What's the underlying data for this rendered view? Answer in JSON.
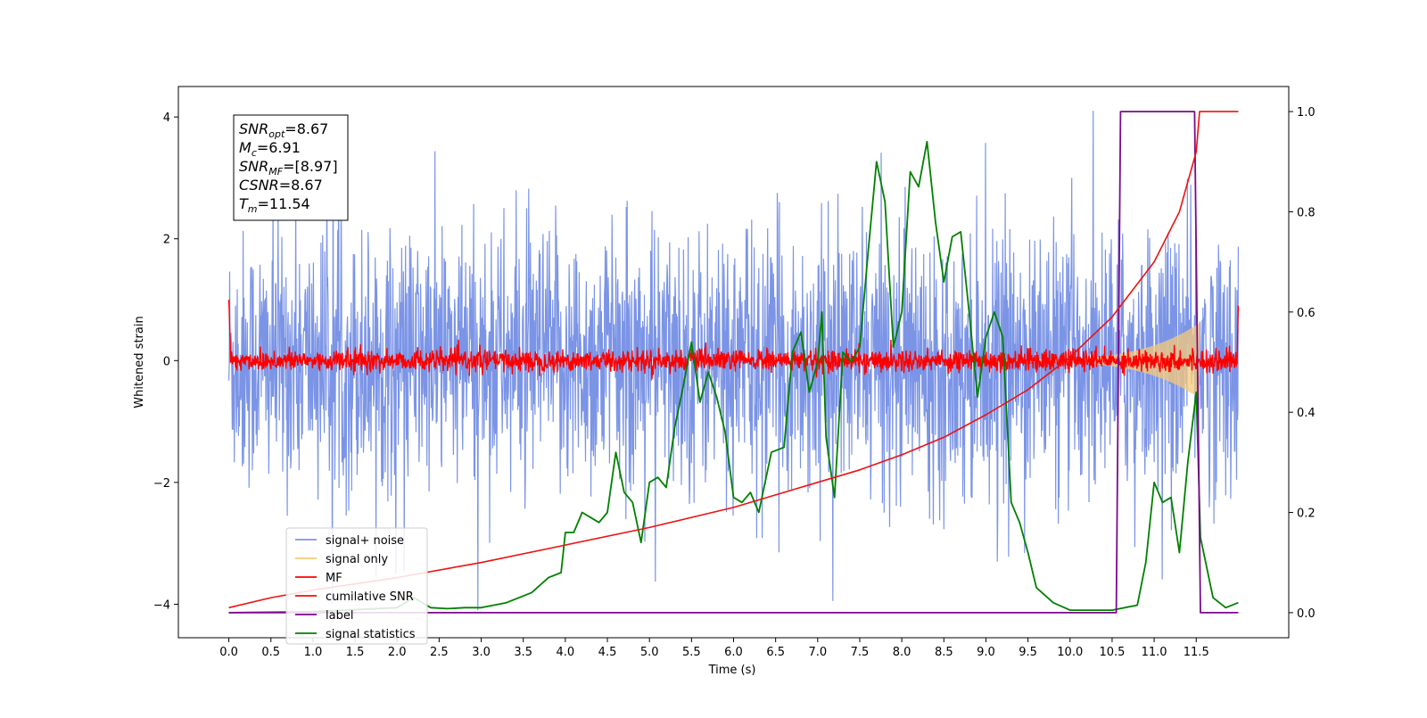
{
  "chart_data": {
    "type": "line",
    "xlabel": "Time (s)",
    "ylabel": "Whitened strain",
    "xlim": [
      -0.6,
      12.6
    ],
    "ylim": [
      -4.55,
      4.5
    ],
    "ylim_right": [
      -0.05,
      1.05
    ],
    "xticks": [
      "0.0",
      "0.5",
      "1.0",
      "1.5",
      "2.0",
      "2.5",
      "3.0",
      "3.5",
      "4.0",
      "4.5",
      "5.0",
      "5.5",
      "6.0",
      "6.5",
      "7.0",
      "7.5",
      "8.0",
      "8.5",
      "9.0",
      "9.5",
      "10.0",
      "10.5",
      "11.0",
      "11.5"
    ],
    "yticks_left": [
      "4",
      "2",
      "0",
      "−2",
      "−4"
    ],
    "yticks_right": [
      "1.0",
      "0.8",
      "0.6",
      "0.4",
      "0.2",
      "0.0"
    ],
    "legend_position": "lower left",
    "grid": false,
    "info_box": {
      "lines": [
        {
          "base": "SNR",
          "sub": "opt",
          "value": "=8.67"
        },
        {
          "base": "M",
          "sub": "c",
          "value": "=6.91"
        },
        {
          "base": "SNR",
          "sub": "MF",
          "value": "=[8.97]"
        },
        {
          "base": "CSNR",
          "sub": "",
          "value": "=8.67"
        },
        {
          "base": "T",
          "sub": "m",
          "value": "=11.54"
        }
      ]
    },
    "series": [
      {
        "name": "signal+ noise",
        "color": "#7b94e6",
        "axis": "left",
        "style": "noise band, amplitude about ±2.5, spikes to about ±4",
        "x_range": [
          0,
          12.0
        ]
      },
      {
        "name": "signal only",
        "color": "#f5c97a",
        "axis": "left",
        "style": "chirp growing in amplitude, ending near t=11.54",
        "x_range": [
          9.0,
          11.54
        ]
      },
      {
        "name": "MF",
        "color": "#ff0000",
        "axis": "left",
        "style": "noise band about ±0.2",
        "x_range": [
          0,
          12.0
        ]
      },
      {
        "name": "cumilative SNR",
        "color": "#ee1111",
        "axis": "right",
        "points": [
          [
            0,
            0.01
          ],
          [
            0.5,
            0.03
          ],
          [
            1.0,
            0.045
          ],
          [
            2.0,
            0.07
          ],
          [
            3.0,
            0.1
          ],
          [
            4.0,
            0.135
          ],
          [
            5.0,
            0.17
          ],
          [
            6.0,
            0.21
          ],
          [
            7.0,
            0.26
          ],
          [
            7.5,
            0.285
          ],
          [
            8.0,
            0.315
          ],
          [
            8.5,
            0.35
          ],
          [
            9.0,
            0.395
          ],
          [
            9.5,
            0.445
          ],
          [
            10.0,
            0.51
          ],
          [
            10.5,
            0.59
          ],
          [
            11.0,
            0.7
          ],
          [
            11.3,
            0.8
          ],
          [
            11.5,
            0.92
          ],
          [
            11.54,
            1.0
          ],
          [
            12.0,
            1.0
          ]
        ]
      },
      {
        "name": "label",
        "color": "#7a0a8c",
        "axis": "right",
        "points": [
          [
            0,
            0
          ],
          [
            10.55,
            0
          ],
          [
            10.6,
            1.0
          ],
          [
            11.48,
            1.0
          ],
          [
            11.55,
            0
          ],
          [
            12.0,
            0
          ]
        ]
      },
      {
        "name": "signal statistics",
        "color": "#008000",
        "axis": "right",
        "points": [
          [
            0,
            0
          ],
          [
            1.0,
            0.002
          ],
          [
            2.0,
            0.01
          ],
          [
            2.2,
            0.03
          ],
          [
            2.4,
            0.01
          ],
          [
            2.6,
            0.008
          ],
          [
            2.8,
            0.01
          ],
          [
            3.0,
            0.01
          ],
          [
            3.3,
            0.02
          ],
          [
            3.6,
            0.04
          ],
          [
            3.8,
            0.07
          ],
          [
            3.95,
            0.08
          ],
          [
            4.0,
            0.16
          ],
          [
            4.1,
            0.16
          ],
          [
            4.2,
            0.2
          ],
          [
            4.3,
            0.19
          ],
          [
            4.4,
            0.18
          ],
          [
            4.5,
            0.2
          ],
          [
            4.6,
            0.32
          ],
          [
            4.7,
            0.24
          ],
          [
            4.8,
            0.22
          ],
          [
            4.9,
            0.14
          ],
          [
            5.0,
            0.26
          ],
          [
            5.1,
            0.27
          ],
          [
            5.2,
            0.25
          ],
          [
            5.3,
            0.37
          ],
          [
            5.4,
            0.45
          ],
          [
            5.5,
            0.54
          ],
          [
            5.6,
            0.42
          ],
          [
            5.7,
            0.48
          ],
          [
            5.8,
            0.43
          ],
          [
            5.9,
            0.36
          ],
          [
            6.0,
            0.23
          ],
          [
            6.1,
            0.22
          ],
          [
            6.2,
            0.24
          ],
          [
            6.3,
            0.2
          ],
          [
            6.45,
            0.32
          ],
          [
            6.6,
            0.33
          ],
          [
            6.7,
            0.52
          ],
          [
            6.8,
            0.56
          ],
          [
            6.9,
            0.44
          ],
          [
            7.0,
            0.5
          ],
          [
            7.05,
            0.6
          ],
          [
            7.1,
            0.35
          ],
          [
            7.2,
            0.23
          ],
          [
            7.3,
            0.52
          ],
          [
            7.4,
            0.5
          ],
          [
            7.5,
            0.53
          ],
          [
            7.6,
            0.72
          ],
          [
            7.7,
            0.9
          ],
          [
            7.8,
            0.82
          ],
          [
            7.9,
            0.53
          ],
          [
            8.0,
            0.6
          ],
          [
            8.1,
            0.88
          ],
          [
            8.2,
            0.85
          ],
          [
            8.3,
            0.94
          ],
          [
            8.4,
            0.78
          ],
          [
            8.5,
            0.66
          ],
          [
            8.6,
            0.75
          ],
          [
            8.7,
            0.76
          ],
          [
            8.8,
            0.6
          ],
          [
            8.9,
            0.43
          ],
          [
            9.0,
            0.55
          ],
          [
            9.1,
            0.6
          ],
          [
            9.2,
            0.55
          ],
          [
            9.3,
            0.22
          ],
          [
            9.4,
            0.18
          ],
          [
            9.5,
            0.12
          ],
          [
            9.6,
            0.05
          ],
          [
            9.8,
            0.02
          ],
          [
            10.0,
            0.005
          ],
          [
            10.5,
            0.005
          ],
          [
            10.8,
            0.015
          ],
          [
            10.9,
            0.1
          ],
          [
            11.0,
            0.26
          ],
          [
            11.1,
            0.22
          ],
          [
            11.2,
            0.23
          ],
          [
            11.3,
            0.12
          ],
          [
            11.4,
            0.3
          ],
          [
            11.5,
            0.44
          ],
          [
            11.55,
            0.15
          ],
          [
            11.7,
            0.03
          ],
          [
            11.85,
            0.01
          ],
          [
            12.0,
            0.02
          ]
        ]
      }
    ]
  }
}
